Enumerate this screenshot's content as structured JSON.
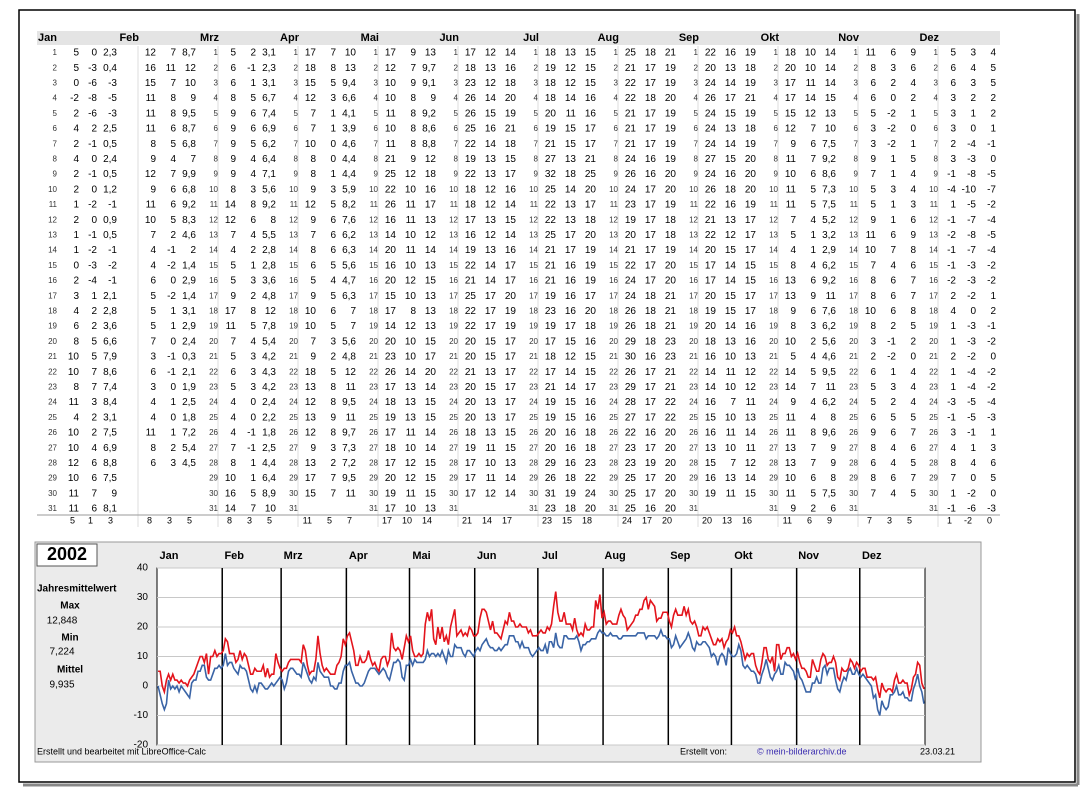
{
  "table": {
    "days": [
      1,
      2,
      3,
      4,
      5,
      6,
      7,
      8,
      9,
      10,
      11,
      12,
      13,
      14,
      15,
      16,
      17,
      18,
      19,
      20,
      21,
      22,
      23,
      24,
      25,
      26,
      27,
      28,
      29,
      30,
      31
    ],
    "months": [
      {
        "name": "Jan",
        "max": [
          5,
          5,
          0,
          -2,
          2,
          4,
          2,
          4,
          2,
          2,
          1,
          2,
          1,
          1,
          0,
          2,
          3,
          4,
          6,
          8,
          10,
          10,
          8,
          11,
          4,
          10,
          10,
          12,
          10,
          11,
          11
        ],
        "min": [
          0,
          -3,
          -6,
          -8,
          -6,
          2,
          -1,
          0,
          -1,
          0,
          -2,
          0,
          -1,
          -2,
          -3,
          -4,
          1,
          2,
          2,
          5,
          5,
          7,
          7,
          3,
          2,
          2,
          4,
          6,
          6,
          7,
          6
        ],
        "mean": [
          "2,3",
          "0,4",
          -3,
          -5,
          -3,
          "2,5",
          "0,5",
          "2,4",
          "0,5",
          "1,2",
          -1,
          "0,9",
          "0,5",
          -1,
          -2,
          -1,
          "2,1",
          "2,8",
          "3,6",
          "6,6",
          "7,9",
          "8,6",
          "7,4",
          "8,4",
          "3,1",
          "7,5",
          "6,9",
          "8,8",
          "7,5",
          9,
          "8,1"
        ],
        "avg": [
          5,
          1,
          3
        ]
      },
      {
        "name": "Feb",
        "max": [
          12,
          16,
          15,
          11,
          11,
          11,
          8,
          9,
          12,
          9,
          11,
          10,
          7,
          4,
          4,
          6,
          5,
          5,
          5,
          7,
          3,
          6,
          3,
          4,
          4,
          11,
          8,
          6
        ],
        "min": [
          7,
          11,
          7,
          8,
          8,
          6,
          5,
          4,
          7,
          6,
          6,
          5,
          2,
          -1,
          -2,
          0,
          -2,
          1,
          1,
          0,
          -1,
          -1,
          0,
          1,
          0,
          1,
          2,
          3
        ],
        "mean": [
          "8,7",
          12,
          10,
          9,
          "9,5",
          "8,7",
          "6,8",
          7,
          "9,9",
          "6,8",
          "9,2",
          "8,3",
          "4,6",
          2,
          "1,4",
          "2,9",
          "1,4",
          "3,1",
          "2,9",
          "2,4",
          "0,3",
          "2,1",
          "1,9",
          "2,5",
          "1,8",
          "7,2",
          "5,4",
          "4,5"
        ],
        "avg": [
          8,
          3,
          5
        ]
      },
      {
        "name": "Mrz",
        "max": [
          5,
          6,
          6,
          8,
          9,
          9,
          9,
          9,
          9,
          8,
          14,
          12,
          7,
          4,
          5,
          5,
          9,
          17,
          11,
          7,
          5,
          6,
          5,
          4,
          4,
          4,
          7,
          8,
          10,
          16,
          14
        ],
        "min": [
          2,
          -1,
          1,
          5,
          6,
          6,
          5,
          4,
          4,
          3,
          8,
          6,
          4,
          2,
          1,
          3,
          2,
          8,
          5,
          4,
          3,
          3,
          3,
          0,
          0,
          -1,
          -1,
          1,
          1,
          5,
          7
        ],
        "mean": [
          "3,1",
          "2,3",
          "3,1",
          "6,7",
          "7,4",
          "6,9",
          "6,2",
          "6,4",
          "7,1",
          "5,6",
          "9,2",
          8,
          "5,5",
          "2,8",
          "2,8",
          "3,6",
          "4,8",
          12,
          "7,8",
          "5,4",
          "4,2",
          "4,3",
          "4,2",
          "2,4",
          "2,2",
          "1,8",
          "2,5",
          "4,4",
          "6,4",
          "8,9",
          10
        ],
        "avg": [
          8,
          3,
          5
        ]
      },
      {
        "name": "Apr",
        "max": [
          17,
          18,
          15,
          12,
          7,
          7,
          10,
          8,
          8,
          9,
          12,
          9,
          7,
          8,
          6,
          5,
          9,
          10,
          10,
          7,
          9,
          18,
          13,
          12,
          13,
          12,
          9,
          13,
          17,
          15
        ],
        "min": [
          7,
          8,
          5,
          3,
          1,
          1,
          0,
          0,
          1,
          3,
          5,
          6,
          6,
          6,
          5,
          4,
          5,
          6,
          5,
          3,
          2,
          5,
          8,
          8,
          9,
          8,
          3,
          2,
          7,
          7
        ],
        "mean": [
          10,
          13,
          "9,4",
          "6,6",
          "4,1",
          "3,9",
          "4,6",
          "4,4",
          "4,4",
          "5,9",
          "8,2",
          "7,6",
          "6,2",
          "6,3",
          "5,6",
          "4,7",
          "6,3",
          7,
          7,
          "5,6",
          "4,8",
          12,
          11,
          "9,5",
          11,
          "9,7",
          "7,3",
          "7,2",
          "9,5",
          11
        ],
        "avg": [
          11,
          5,
          7
        ]
      },
      {
        "name": "Mai",
        "max": [
          17,
          12,
          10,
          10,
          11,
          10,
          11,
          21,
          25,
          22,
          26,
          16,
          14,
          20,
          16,
          20,
          15,
          17,
          14,
          20,
          23,
          26,
          17,
          18,
          19,
          17,
          18,
          17,
          20,
          19,
          17
        ],
        "min": [
          9,
          7,
          9,
          8,
          8,
          8,
          8,
          9,
          12,
          10,
          11,
          11,
          10,
          11,
          10,
          12,
          10,
          8,
          12,
          10,
          10,
          14,
          13,
          13,
          13,
          11,
          10,
          12,
          12,
          11,
          10
        ],
        "mean": [
          13,
          "9,7",
          "9,1",
          9,
          "9,2",
          "8,6",
          "8,8",
          12,
          18,
          16,
          17,
          13,
          12,
          14,
          13,
          15,
          13,
          13,
          13,
          15,
          17,
          20,
          14,
          15,
          15,
          14,
          14,
          15,
          15,
          15,
          13
        ],
        "avg": [
          17,
          10,
          14
        ]
      },
      {
        "name": "Jun",
        "max": [
          17,
          18,
          23,
          26,
          26,
          25,
          22,
          19,
          22,
          18,
          18,
          17,
          16,
          19,
          22,
          21,
          25,
          22,
          22,
          20,
          20,
          21,
          20,
          20,
          20,
          18,
          19,
          17,
          17,
          17
        ],
        "min": [
          12,
          13,
          12,
          14,
          15,
          16,
          14,
          13,
          13,
          12,
          12,
          13,
          12,
          13,
          14,
          14,
          17,
          17,
          17,
          15,
          15,
          13,
          15,
          13,
          13,
          13,
          11,
          10,
          11,
          12
        ],
        "mean": [
          14,
          16,
          18,
          20,
          19,
          21,
          18,
          15,
          17,
          16,
          14,
          15,
          14,
          16,
          17,
          17,
          20,
          19,
          19,
          17,
          17,
          17,
          17,
          17,
          17,
          15,
          15,
          13,
          14,
          14
        ],
        "avg": [
          21,
          14,
          17
        ]
      },
      {
        "name": "Jul",
        "max": [
          18,
          19,
          18,
          18,
          20,
          19,
          21,
          27,
          32,
          25,
          22,
          22,
          25,
          21,
          21,
          21,
          19,
          23,
          19,
          17,
          18,
          17,
          21,
          19,
          19,
          20,
          20,
          29,
          26,
          31,
          23
        ],
        "min": [
          13,
          12,
          12,
          14,
          11,
          15,
          15,
          13,
          18,
          14,
          13,
          13,
          17,
          17,
          16,
          16,
          16,
          16,
          17,
          15,
          12,
          14,
          14,
          15,
          15,
          16,
          16,
          16,
          18,
          19,
          18
        ],
        "mean": [
          15,
          15,
          15,
          16,
          16,
          17,
          17,
          21,
          25,
          20,
          17,
          18,
          20,
          19,
          19,
          19,
          17,
          20,
          18,
          16,
          15,
          15,
          17,
          16,
          16,
          18,
          18,
          23,
          22,
          24,
          20
        ],
        "avg": [
          23,
          15,
          18
        ]
      },
      {
        "name": "Aug",
        "max": [
          25,
          21,
          22,
          22,
          21,
          21,
          21,
          24,
          26,
          24,
          23,
          19,
          20,
          21,
          22,
          24,
          24,
          26,
          26,
          29,
          30,
          26,
          29,
          28,
          27,
          22,
          23,
          23,
          25,
          25,
          25
        ],
        "min": [
          18,
          17,
          17,
          18,
          17,
          17,
          17,
          16,
          16,
          17,
          17,
          17,
          17,
          17,
          17,
          17,
          18,
          18,
          18,
          18,
          16,
          17,
          17,
          17,
          17,
          16,
          17,
          19,
          17,
          17,
          16
        ],
        "mean": [
          21,
          19,
          19,
          20,
          19,
          19,
          19,
          19,
          20,
          20,
          19,
          18,
          18,
          19,
          20,
          20,
          21,
          21,
          21,
          23,
          23,
          21,
          21,
          22,
          22,
          20,
          20,
          20,
          20,
          20,
          20
        ],
        "avg": [
          24,
          17,
          20
        ]
      },
      {
        "name": "Sep",
        "max": [
          22,
          20,
          24,
          26,
          24,
          24,
          24,
          27,
          24,
          26,
          22,
          21,
          22,
          20,
          17,
          17,
          20,
          19,
          20,
          18,
          16,
          14,
          14,
          16,
          15,
          16,
          13,
          15,
          16,
          19
        ],
        "min": [
          16,
          13,
          14,
          17,
          15,
          13,
          14,
          15,
          16,
          18,
          16,
          13,
          12,
          15,
          14,
          14,
          15,
          15,
          14,
          13,
          10,
          11,
          10,
          7,
          10,
          11,
          10,
          7,
          13,
          11
        ],
        "mean": [
          19,
          18,
          19,
          21,
          19,
          18,
          19,
          20,
          20,
          20,
          19,
          17,
          17,
          17,
          15,
          15,
          17,
          17,
          16,
          16,
          13,
          12,
          12,
          11,
          13,
          14,
          11,
          12,
          14,
          15
        ],
        "avg": [
          20,
          13,
          16
        ]
      },
      {
        "name": "Okt",
        "max": [
          18,
          20,
          17,
          17,
          15,
          12,
          9,
          11,
          10,
          11,
          11,
          7,
          5,
          4,
          8,
          13,
          13,
          9,
          8,
          10,
          5,
          14,
          14,
          9,
          11,
          11,
          13,
          13,
          10,
          11,
          9
        ],
        "min": [
          10,
          10,
          11,
          14,
          12,
          7,
          6,
          7,
          6,
          5,
          5,
          4,
          1,
          1,
          4,
          6,
          9,
          6,
          3,
          2,
          4,
          5,
          7,
          4,
          4,
          8,
          7,
          7,
          6,
          5,
          2
        ],
        "mean": [
          14,
          14,
          14,
          15,
          13,
          10,
          "7,5",
          "9,2",
          "8,6",
          "7,3",
          "7,5",
          "5,2",
          "3,2",
          "2,9",
          "6,2",
          "9,2",
          11,
          "7,6",
          "6,2",
          "5,6",
          "4,6",
          "9,5",
          11,
          "6,2",
          8,
          "9,6",
          9,
          9,
          8,
          "7,5",
          6
        ],
        "avg": [
          11,
          6,
          9
        ]
      },
      {
        "name": "Nov",
        "max": [
          11,
          8,
          6,
          6,
          5,
          3,
          3,
          9,
          7,
          5,
          5,
          9,
          11,
          10,
          7,
          8,
          8,
          10,
          8,
          3,
          2,
          6,
          5,
          5,
          6,
          9,
          8,
          6,
          8,
          7
        ],
        "min": [
          6,
          3,
          2,
          0,
          -2,
          -2,
          -2,
          1,
          1,
          3,
          1,
          1,
          6,
          7,
          4,
          6,
          6,
          6,
          2,
          -1,
          -2,
          1,
          3,
          2,
          5,
          6,
          4,
          4,
          6,
          4
        ],
        "mean": [
          9,
          6,
          4,
          2,
          1,
          0,
          1,
          5,
          4,
          4,
          3,
          6,
          9,
          8,
          6,
          7,
          7,
          8,
          5,
          2,
          0,
          4,
          4,
          4,
          5,
          7,
          6,
          5,
          7,
          5
        ],
        "avg": [
          7,
          3,
          5
        ]
      },
      {
        "name": "Dez",
        "max": [
          5,
          6,
          6,
          3,
          3,
          3,
          2,
          3,
          -1,
          -4,
          1,
          -1,
          -2,
          -1,
          -1,
          -2,
          2,
          4,
          1,
          1,
          2,
          1,
          1,
          -3,
          -1,
          3,
          4,
          8,
          7,
          1,
          -1
        ],
        "min": [
          3,
          4,
          3,
          2,
          1,
          0,
          -4,
          -3,
          -8,
          -10,
          -5,
          -7,
          -8,
          -7,
          -3,
          -3,
          -2,
          0,
          -3,
          -3,
          -2,
          -4,
          -4,
          -5,
          -5,
          -1,
          1,
          4,
          0,
          -2,
          -6
        ],
        "mean": [
          4,
          5,
          5,
          2,
          2,
          1,
          -1,
          0,
          -5,
          -7,
          -2,
          -4,
          -5,
          -4,
          -2,
          -2,
          1,
          2,
          -1,
          -2,
          0,
          -2,
          -2,
          -4,
          -3,
          1,
          3,
          6,
          5,
          0,
          -3
        ],
        "avg": [
          1,
          -2,
          0
        ]
      }
    ]
  },
  "chart_data": {
    "type": "line",
    "title": "2002",
    "ylim": [
      -20,
      40
    ],
    "yticks": [
      -20,
      -10,
      0,
      10,
      20,
      30,
      40
    ],
    "grid": true,
    "colors": {
      "max": "#e3141c",
      "min": "#3a64a6"
    }
  },
  "stats": {
    "title": "Jahresmittelwert",
    "items": [
      {
        "label": "Max",
        "value": "12,848"
      },
      {
        "label": "Min",
        "value": "7,224"
      },
      {
        "label": "Mittel",
        "value": "9,935"
      }
    ]
  },
  "footer": {
    "tool": "Erstellt und bearbeitet mit LibreOffice-Calc",
    "by_label": "Erstellt von:",
    "by": "© mein-bilderarchiv.de",
    "date": "23.03.21"
  }
}
